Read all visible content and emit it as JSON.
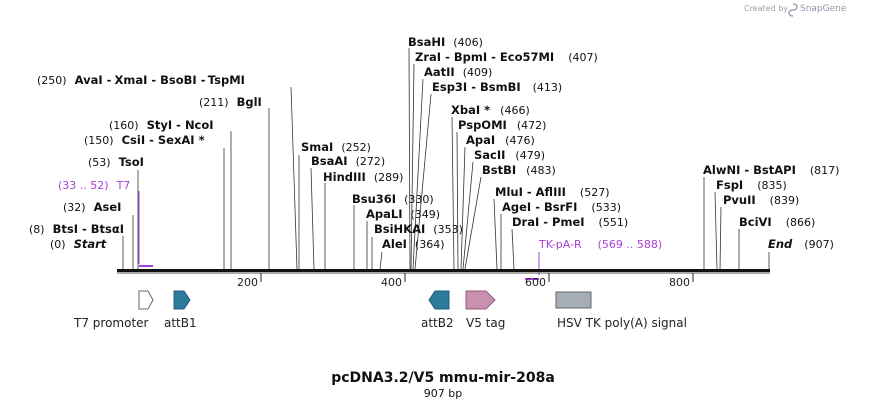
{
  "credit": {
    "created_by": "Created by",
    "brand": "SnapGene"
  },
  "title": "pcDNA3.2/V5 mmu-mir-208a",
  "subtitle": "907 bp",
  "ends": {
    "start": {
      "name": "Start",
      "pos": "(0)"
    },
    "end": {
      "name": "End",
      "pos": "(907)"
    }
  },
  "ticks": [
    "200",
    "400",
    "600",
    "800"
  ],
  "enzymes": {
    "btsi": {
      "name": "BtsI",
      "pos": "(8)"
    },
    "btsai": {
      "name": "BtsαI"
    },
    "asei": {
      "name": "AseI",
      "pos": "(32)"
    },
    "tsoi": {
      "name": "TsoI",
      "pos": "(53)"
    },
    "csii": {
      "name": "CsiI",
      "pos": "(150)"
    },
    "sexai": {
      "name": "SexAI *"
    },
    "styi": {
      "name": "StyI",
      "pos": "(160)"
    },
    "ncoi": {
      "name": "NcoI"
    },
    "bgli": {
      "name": "BglI",
      "pos": "(211)"
    },
    "avai": {
      "name": "AvaI",
      "pos": "(250)"
    },
    "xmai": {
      "name": "XmaI"
    },
    "bsobi": {
      "name": "BsoBI"
    },
    "tspmi": {
      "name": "TspMI"
    },
    "smai": {
      "name": "SmaI",
      "pos": "(252)"
    },
    "bsaai": {
      "name": "BsaAI",
      "pos": "(272)"
    },
    "hindiii": {
      "name": "HindIII",
      "pos": "(289)"
    },
    "bsu36i": {
      "name": "Bsu36I",
      "pos": "(330)"
    },
    "apali": {
      "name": "ApaLI",
      "pos": "(349)"
    },
    "bsihkai": {
      "name": "BsiHKAI",
      "pos": "(353)"
    },
    "alei": {
      "name": "AleI",
      "pos": "(364)"
    },
    "bsahi": {
      "name": "BsaHI",
      "pos": "(406)"
    },
    "zrai": {
      "name": "ZraI",
      "pos": "(407)"
    },
    "bpmi": {
      "name": "BpmI"
    },
    "eco57mi": {
      "name": "Eco57MI"
    },
    "aatii": {
      "name": "AatII",
      "pos": "(409)"
    },
    "esp3i": {
      "name": "Esp3I",
      "pos": "(413)"
    },
    "bsmbi": {
      "name": "BsmBI"
    },
    "xbai": {
      "name": "XbaI *",
      "pos": "(466)"
    },
    "pspomi": {
      "name": "PspOMI",
      "pos": "(472)"
    },
    "apai": {
      "name": "ApaI",
      "pos": "(476)"
    },
    "sacii": {
      "name": "SacII",
      "pos": "(479)"
    },
    "bstbi": {
      "name": "BstBI",
      "pos": "(483)"
    },
    "mlui": {
      "name": "MluI",
      "pos": "(527)"
    },
    "aflIII": {
      "name": "AflIII"
    },
    "agei": {
      "name": "AgeI",
      "pos": "(533)"
    },
    "bsrfi": {
      "name": "BsrFI"
    },
    "drai": {
      "name": "DraI",
      "pos": "(551)"
    },
    "pmei": {
      "name": "PmeI"
    },
    "alwni": {
      "name": "AlwNI",
      "pos": "(817)"
    },
    "bstapi": {
      "name": "BstAPI"
    },
    "fspi": {
      "name": "FspI",
      "pos": "(835)"
    },
    "pvuii": {
      "name": "PvuII",
      "pos": "(839)"
    },
    "bcivi": {
      "name": "BciVI",
      "pos": "(866)"
    }
  },
  "primers": {
    "t7": {
      "name": "T7",
      "range": "(33 .. 52)"
    },
    "tkpar": {
      "name": "TK-pA-R",
      "range": "(569 .. 588)"
    }
  },
  "features": {
    "t7promoter": {
      "name": "T7 promoter",
      "color": "#ffffff"
    },
    "attb1": {
      "name": "attB1",
      "color": "#2e7a9a"
    },
    "attb2": {
      "name": "attB2",
      "color": "#2e7a9a"
    },
    "v5tag": {
      "name": "V5 tag",
      "color": "#c990b0"
    },
    "hsvtk": {
      "name": "HSV TK poly(A) signal",
      "color": "#a6adb5"
    }
  },
  "colors": {
    "primer": "#a93fd6",
    "backbone": "#111111"
  }
}
